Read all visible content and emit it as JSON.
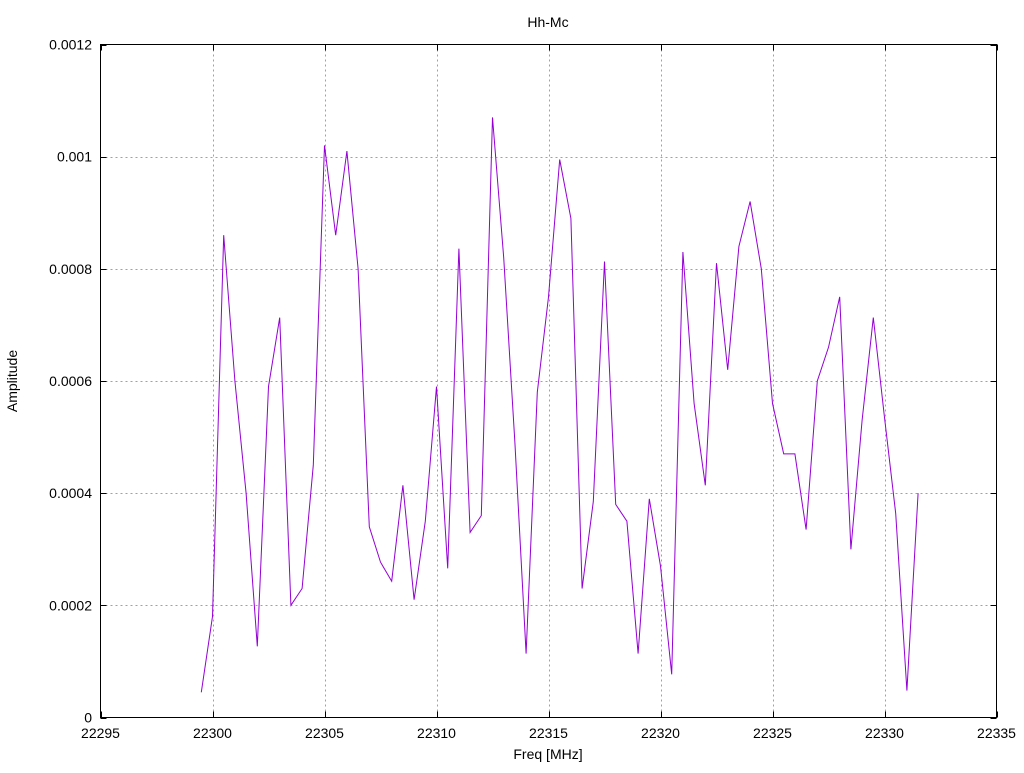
{
  "chart_data": {
    "type": "line",
    "title": "Hh-Mc",
    "xlabel": "Freq [MHz]",
    "ylabel": "Amplitude",
    "xlim": [
      22295,
      22335
    ],
    "ylim": [
      0,
      0.0012
    ],
    "xticks": [
      "22295",
      "22300",
      "22305",
      "22310",
      "22315",
      "22320",
      "22325",
      "22330",
      "22335"
    ],
    "yticks": [
      "0",
      "0.0002",
      "0.0004",
      "0.0006",
      "0.0008",
      "0.001",
      "0.0012"
    ],
    "grid": true,
    "line_color": "#9400d3",
    "series": [
      {
        "x": [
          22299.5,
          22300,
          22300.5,
          22301,
          22301.5,
          22302,
          22302.5,
          22303,
          22303.5,
          22304,
          22304.5,
          22305,
          22305.5,
          22306,
          22306.5,
          22307,
          22307.5,
          22308,
          22308.5,
          22309,
          22309.5,
          22310,
          22310.5,
          22311,
          22311.5,
          22312,
          22312.5,
          22313,
          22313.5,
          22314,
          22314.5,
          22315,
          22315.5,
          22316,
          22316.5,
          22317,
          22317.5,
          22318,
          22318.5,
          22319,
          22319.5,
          22320,
          22320.5,
          22321,
          22321.5,
          22322,
          22322.5,
          22323,
          22323.5,
          22324,
          22324.5,
          22325,
          22325.5,
          22326,
          22326.5,
          22327,
          22327.5,
          22328,
          22328.5,
          22329,
          22329.5,
          22330,
          22330.5,
          22331,
          22331.5
        ],
        "y": [
          4.5e-05,
          0.00018,
          0.00086,
          0.0006,
          0.0004,
          0.000127,
          0.00059,
          0.000713,
          0.0002,
          0.00023,
          0.00045,
          0.00102,
          0.00086,
          0.00101,
          0.0008,
          0.00034,
          0.000277,
          0.000243,
          0.000414,
          0.00021,
          0.00035,
          0.00059,
          0.000266,
          0.000836,
          0.00033,
          0.00036,
          0.00107,
          0.00082,
          0.00049,
          0.000114,
          0.00058,
          0.00075,
          0.000995,
          0.00089,
          0.00023,
          0.000385,
          0.000813,
          0.00038,
          0.00035,
          0.000114,
          0.00039,
          0.00027,
          7.7e-05,
          0.00083,
          0.00056,
          0.000414,
          0.00081,
          0.00062,
          0.00084,
          0.00092,
          0.0008,
          0.00056,
          0.00047,
          0.00047,
          0.000335,
          0.0006,
          0.00066,
          0.00075,
          0.0003,
          0.00053,
          0.000713,
          0.000535,
          0.000364,
          4.8e-05,
          0.0004
        ]
      }
    ]
  }
}
